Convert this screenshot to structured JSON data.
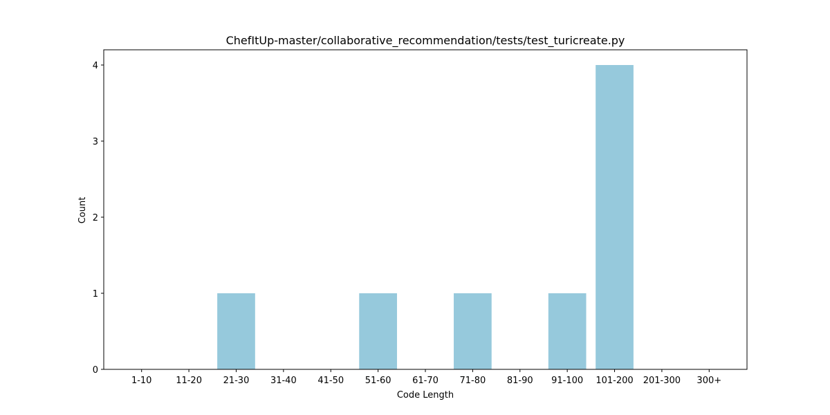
{
  "chart_data": {
    "type": "bar",
    "title": "ChefItUp-master/collaborative_recommendation/tests/test_turicreate.py",
    "xlabel": "Code Length",
    "ylabel": "Count",
    "categories": [
      "1-10",
      "11-20",
      "21-30",
      "31-40",
      "41-50",
      "51-60",
      "61-70",
      "71-80",
      "81-90",
      "91-100",
      "101-200",
      "201-300",
      "300+"
    ],
    "values": [
      0,
      0,
      1,
      0,
      0,
      1,
      0,
      1,
      0,
      1,
      4,
      0,
      0
    ],
    "ylim": [
      0,
      4.2
    ],
    "yticks": [
      0,
      1,
      2,
      3,
      4
    ],
    "bar_color": "#96c9dc",
    "grid": false,
    "legend": "none"
  }
}
